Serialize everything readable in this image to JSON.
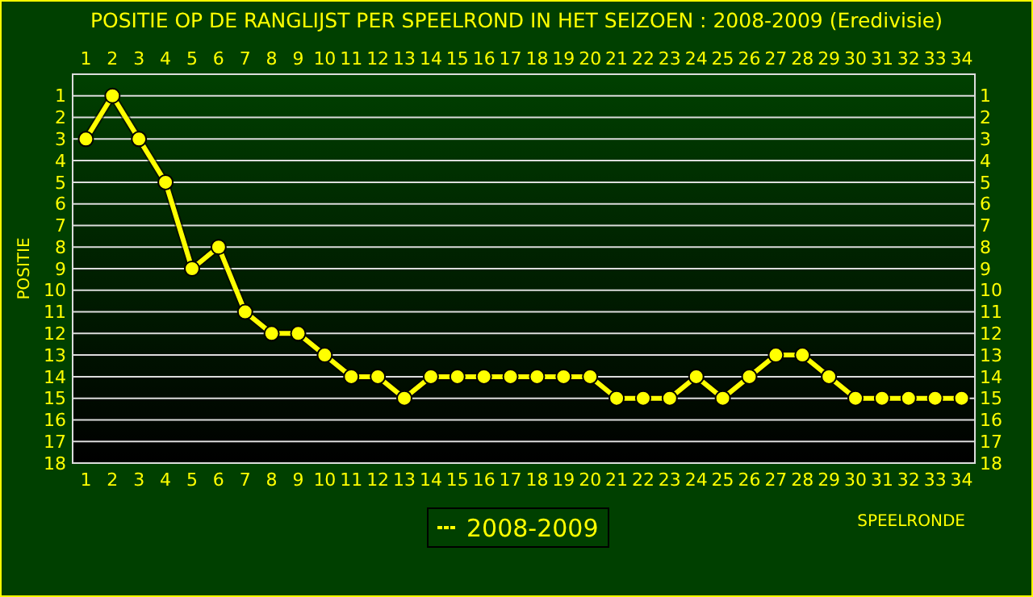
{
  "chart_data": {
    "type": "line",
    "title": "POSITIE OP DE RANGLIJST PER  SPEELROND IN HET SEIZOEN : 2008-2009 (Eredivisie)",
    "xlabel": "SPEELRONDE",
    "ylabel": "POSITIE",
    "x": [
      1,
      2,
      3,
      4,
      5,
      6,
      7,
      8,
      9,
      10,
      11,
      12,
      13,
      14,
      15,
      16,
      17,
      18,
      19,
      20,
      21,
      22,
      23,
      24,
      25,
      26,
      27,
      28,
      29,
      30,
      31,
      32,
      33,
      34
    ],
    "series": [
      {
        "name": "2008-2009",
        "color": "#ffff00",
        "values": [
          3,
          1,
          3,
          5,
          9,
          8,
          11,
          12,
          12,
          13,
          14,
          14,
          15,
          14,
          14,
          14,
          14,
          14,
          14,
          14,
          15,
          15,
          15,
          14,
          15,
          14,
          13,
          13,
          14,
          15,
          15,
          15,
          15,
          15
        ]
      }
    ],
    "xlim": [
      0.5,
      34.5
    ],
    "xticks": [
      1,
      2,
      3,
      4,
      5,
      6,
      7,
      8,
      9,
      10,
      11,
      12,
      13,
      14,
      15,
      16,
      17,
      18,
      19,
      20,
      21,
      22,
      23,
      24,
      25,
      26,
      27,
      28,
      29,
      30,
      31,
      32,
      33,
      34
    ],
    "x2lim": [
      0.5,
      34.5
    ],
    "x2ticks": [
      1,
      2,
      3,
      4,
      5,
      6,
      7,
      8,
      9,
      10,
      11,
      12,
      13,
      14,
      15,
      16,
      17,
      18,
      19,
      20,
      21,
      22,
      23,
      24,
      25,
      26,
      27,
      28,
      29,
      30,
      31,
      32,
      33,
      34
    ],
    "ylim": [
      18,
      0
    ],
    "yticks": [
      1,
      2,
      3,
      4,
      5,
      6,
      7,
      8,
      9,
      10,
      11,
      12,
      13,
      14,
      15,
      16,
      17,
      18
    ],
    "y2lim": [
      18,
      0
    ],
    "y2ticks": [
      1,
      2,
      3,
      4,
      5,
      6,
      7,
      8,
      9,
      10,
      11,
      12,
      13,
      14,
      15,
      16,
      17,
      18
    ],
    "grid": "y",
    "legend": "bottom",
    "marker": "circle",
    "line_style": "solid"
  }
}
